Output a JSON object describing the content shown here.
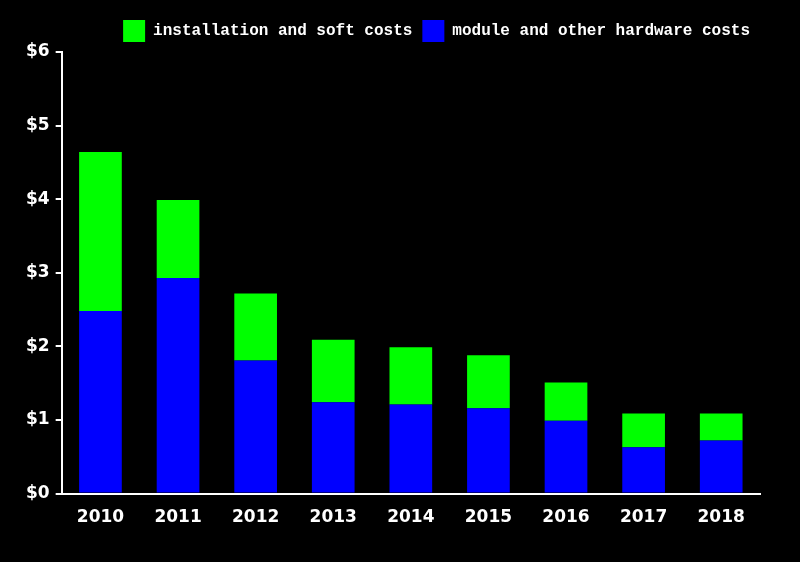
{
  "chart_data": {
    "type": "bar",
    "stacked": true,
    "grid": false,
    "legend": "upper right",
    "categories": [
      "2010",
      "2011",
      "2012",
      "2013",
      "2014",
      "2015",
      "2016",
      "2017",
      "2018"
    ],
    "series": [
      {
        "name": "module and other hardware costs",
        "color": "#0000ff",
        "values": [
          2.48,
          2.93,
          1.81,
          1.24,
          1.21,
          1.16,
          0.99,
          0.63,
          0.72
        ]
      },
      {
        "name": "installation and soft costs",
        "color": "#00ff00",
        "values": [
          2.16,
          1.06,
          0.91,
          0.85,
          0.78,
          0.72,
          0.52,
          0.46,
          0.37
        ]
      }
    ],
    "ylim": [
      0,
      6
    ],
    "yticks": [
      {
        "value": 0,
        "label": "$0"
      },
      {
        "value": 1,
        "label": "$1"
      },
      {
        "value": 2,
        "label": "$2"
      },
      {
        "value": 3,
        "label": "$3"
      },
      {
        "value": 4,
        "label": "$4"
      },
      {
        "value": 5,
        "label": "$5"
      },
      {
        "value": 6,
        "label": "$6"
      }
    ]
  }
}
